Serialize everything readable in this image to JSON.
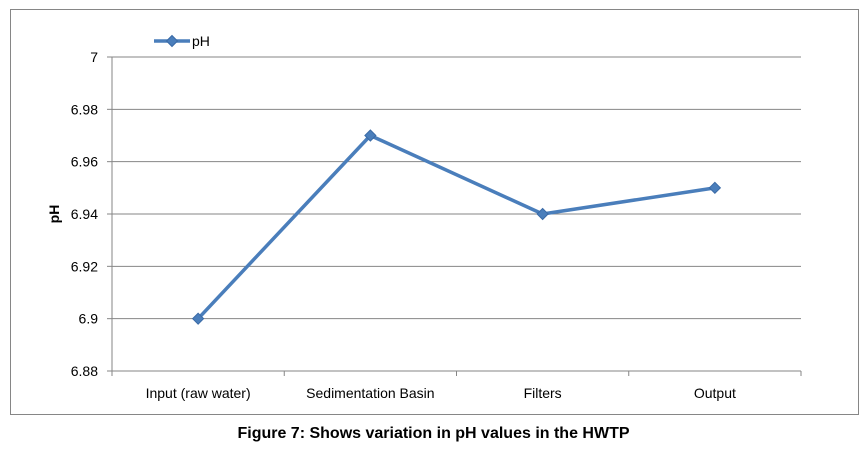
{
  "chart_data": {
    "type": "line",
    "categories": [
      "Input (raw water)",
      "Sedimentation Basin",
      "Filters",
      "Output"
    ],
    "series": [
      {
        "name": "pH",
        "values": [
          6.9,
          6.97,
          6.94,
          6.95
        ]
      }
    ],
    "ylabel": "pH",
    "xlabel": "",
    "ylim": [
      6.88,
      7
    ],
    "yticks": [
      "6.88",
      "6.9",
      "6.92",
      "6.94",
      "6.96",
      "6.98",
      "7"
    ],
    "grid": true,
    "legend_position": "top-left",
    "marker": "diamond"
  },
  "colors": {
    "series": "#4a7ebb",
    "grid": "#868686",
    "text": "#000000"
  },
  "caption": "Figure 7: Shows variation in pH values in the HWTP"
}
